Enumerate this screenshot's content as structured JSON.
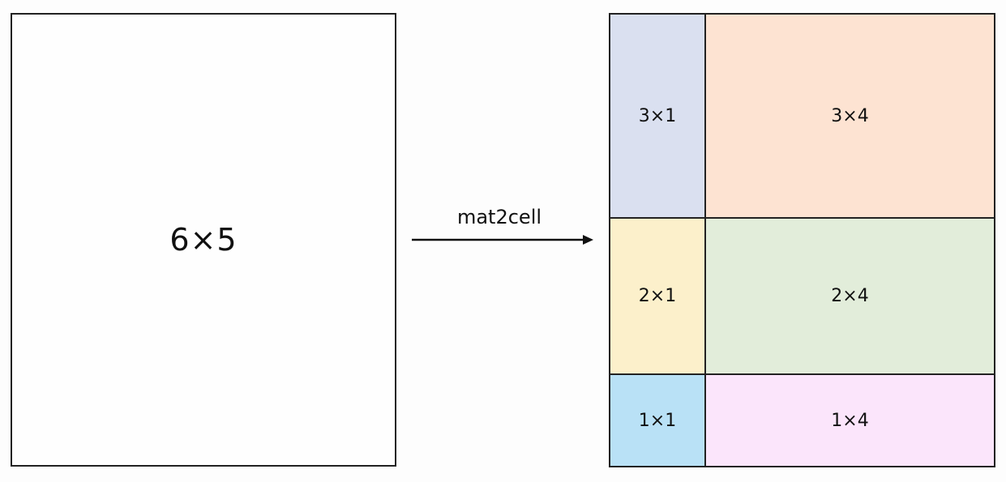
{
  "source": {
    "label": "6×5"
  },
  "operation": {
    "label": "mat2cell"
  },
  "cells": [
    {
      "label": "3×1",
      "color": "#dae0f0"
    },
    {
      "label": "3×4",
      "color": "#fde3d2"
    },
    {
      "label": "2×1",
      "color": "#fcf0cb"
    },
    {
      "label": "2×4",
      "color": "#e2edda"
    },
    {
      "label": "1×1",
      "color": "#b9e1f6"
    },
    {
      "label": "1×4",
      "color": "#fbe5fb"
    }
  ]
}
